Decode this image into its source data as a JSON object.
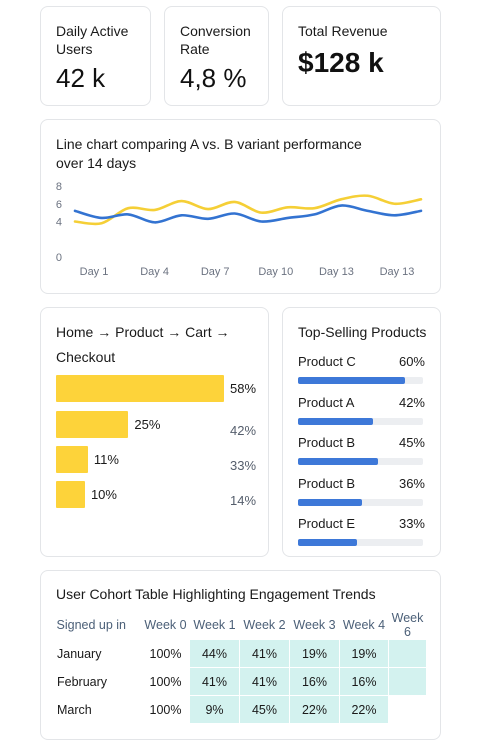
{
  "kpis": [
    {
      "label_lines": [
        "Daily Active",
        "Users"
      ],
      "value": "42 k"
    },
    {
      "label_lines": [
        "Conversion",
        "Rate"
      ],
      "value": "4,8 %"
    },
    {
      "label_lines": [
        "Total Revenue"
      ],
      "value": "$128 k"
    }
  ],
  "line_chart": {
    "title_lines": [
      "Line chart comparing A vs. B variant performance",
      "over 14 days"
    ]
  },
  "chart_data": {
    "type": "line",
    "title": "",
    "x": [
      1,
      2,
      3,
      4,
      5,
      6,
      7,
      8,
      9,
      10,
      11,
      12,
      13,
      14
    ],
    "x_tick_labels": [
      "Day 1",
      "Day 4",
      "Day 7",
      "Day 10",
      "Day 13",
      "Day 13"
    ],
    "y_ticks": [
      "0",
      "4",
      "6",
      "8"
    ],
    "ylim": [
      0,
      8
    ],
    "grid": false,
    "series": [
      {
        "color": "#f5cf36",
        "values": [
          4.0,
          3.8,
          5.5,
          5.3,
          6.3,
          5.4,
          6.2,
          5.0,
          5.6,
          5.5,
          6.5,
          6.9,
          6.0,
          6.5
        ]
      },
      {
        "color": "#3373d1",
        "values": [
          5.2,
          4.4,
          4.8,
          3.9,
          4.7,
          4.3,
          4.9,
          4.0,
          4.4,
          4.8,
          5.8,
          5.2,
          4.7,
          5.2
        ]
      }
    ]
  },
  "funnel": {
    "title_lines": [
      "Home → Product → Cart →",
      "Checkout"
    ],
    "steps": [
      {
        "value": 58,
        "label": "58%",
        "sub": ""
      },
      {
        "value": 25,
        "label": "25%",
        "sub": "42%"
      },
      {
        "value": 11,
        "label": "11%",
        "sub": "33%"
      },
      {
        "value": 10,
        "label": "10%",
        "sub": "14%"
      }
    ]
  },
  "top_products": {
    "title": "Top-Selling Products",
    "items": [
      {
        "name": "Product C",
        "value": 60,
        "label": "60%"
      },
      {
        "name": "Product A",
        "value": 42,
        "label": "42%"
      },
      {
        "name": "Product B",
        "value": 45,
        "label": "45%"
      },
      {
        "name": "Product B",
        "value": 36,
        "label": "36%"
      },
      {
        "name": "Product E",
        "value": 33,
        "label": "33%"
      }
    ]
  },
  "cohort": {
    "title": "User Cohort Table Highlighting Engagement Trends",
    "headers": [
      "Signed up in",
      "Week 0",
      "Week 1",
      "Week 2",
      "Week 3",
      "Week 4",
      "Week 6"
    ],
    "rows": [
      {
        "label": "January",
        "cells": [
          "100%",
          "44%",
          "41%",
          "19%",
          "19%",
          ""
        ]
      },
      {
        "label": "February",
        "cells": [
          "100%",
          "41%",
          "41%",
          "16%",
          "16%",
          ""
        ]
      },
      {
        "label": "March",
        "cells": [
          "100%",
          "9%",
          "45%",
          "22%",
          "22%",
          ""
        ]
      }
    ],
    "highlight_color": "#d3f2ef"
  }
}
